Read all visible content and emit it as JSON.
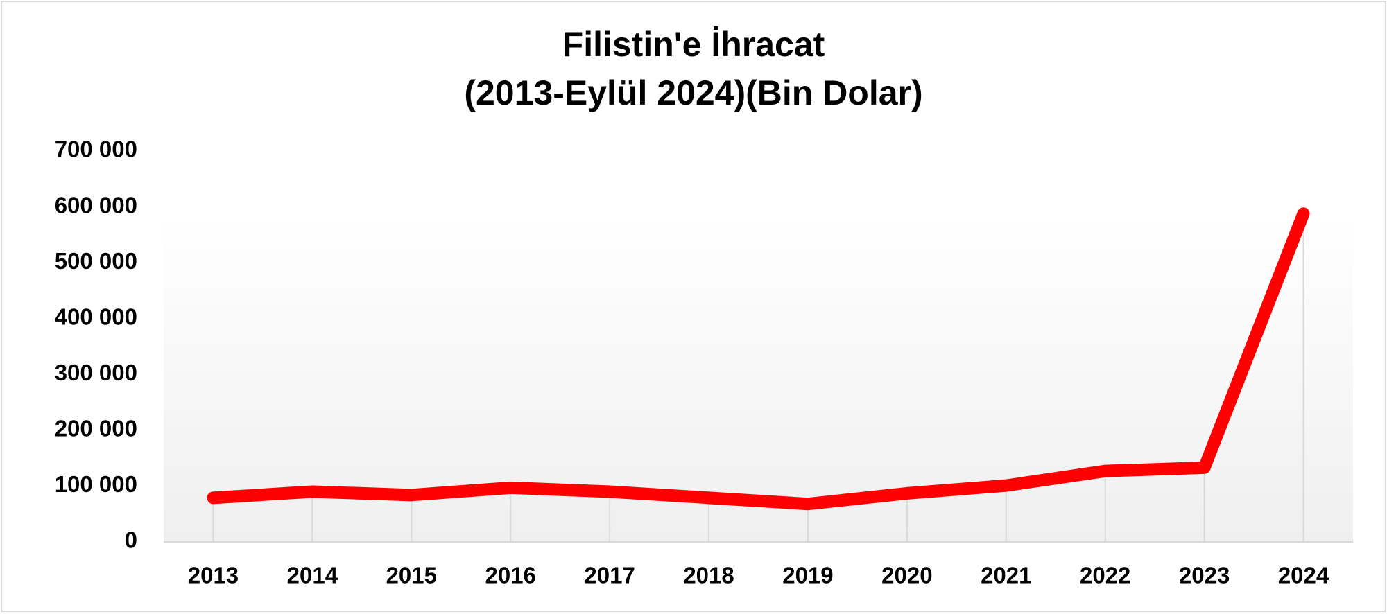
{
  "chart_data": {
    "type": "line",
    "title": "Filistin'e İhracat",
    "subtitle": "(2013-Eylül 2024)(Bin Dolar)",
    "categories": [
      "2013",
      "2014",
      "2015",
      "2016",
      "2017",
      "2018",
      "2019",
      "2020",
      "2021",
      "2022",
      "2023",
      "2024"
    ],
    "values": [
      79000,
      90000,
      84000,
      97000,
      90000,
      79000,
      68000,
      87000,
      101000,
      127000,
      133000,
      588000
    ],
    "color": "#ff0000",
    "ylim": [
      0,
      700000
    ],
    "yticks": [
      {
        "value": 0,
        "label": "0"
      },
      {
        "value": 100000,
        "label": "100 000"
      },
      {
        "value": 200000,
        "label": "200 000"
      },
      {
        "value": 300000,
        "label": "300 000"
      },
      {
        "value": 400000,
        "label": "400 000"
      },
      {
        "value": 500000,
        "label": "500 000"
      },
      {
        "value": 600000,
        "label": "600 000"
      },
      {
        "value": 700000,
        "label": "700 000"
      }
    ],
    "grid": false,
    "drop_lines": true
  }
}
